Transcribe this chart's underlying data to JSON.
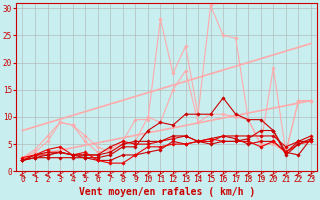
{
  "background_color": "#c8eef0",
  "grid_color": "#b0b0b0",
  "xlabel": "Vent moyen/en rafales ( km/h )",
  "xlabel_color": "#cc0000",
  "xlabel_fontsize": 7,
  "tick_color": "#cc0000",
  "tick_fontsize": 5.5,
  "xlim": [
    -0.5,
    23.5
  ],
  "ylim": [
    0,
    31
  ],
  "yticks": [
    0,
    5,
    10,
    15,
    20,
    25,
    30
  ],
  "xticks": [
    0,
    1,
    2,
    3,
    4,
    5,
    6,
    7,
    8,
    9,
    10,
    11,
    12,
    13,
    14,
    15,
    16,
    17,
    18,
    19,
    20,
    21,
    22,
    23
  ],
  "series": [
    {
      "x": [
        0,
        23
      ],
      "y": [
        7.5,
        23.5
      ],
      "color": "#ffaaaa",
      "lw": 1.2,
      "marker": null
    },
    {
      "x": [
        0,
        23
      ],
      "y": [
        2.5,
        13.0
      ],
      "color": "#ffaaaa",
      "lw": 1.2,
      "marker": null
    },
    {
      "x": [
        0,
        1,
        2,
        3,
        4,
        5,
        6,
        7,
        8,
        9,
        10,
        11,
        12,
        13,
        14,
        15,
        16,
        17,
        18,
        19,
        20,
        21,
        22,
        23
      ],
      "y": [
        2.5,
        3.5,
        5.5,
        9.0,
        8.5,
        5.5,
        3.5,
        4.0,
        5.5,
        9.5,
        9.5,
        28.0,
        18.0,
        23.0,
        10.5,
        30.5,
        25.0,
        24.5,
        9.5,
        5.0,
        5.0,
        3.5,
        13.0,
        13.0
      ],
      "color": "#ffaaaa",
      "lw": 0.8,
      "marker": "D",
      "markersize": 1.8
    },
    {
      "x": [
        0,
        1,
        2,
        3,
        4,
        5,
        6,
        7,
        8,
        9,
        10,
        11,
        12,
        13,
        14,
        15,
        16,
        17,
        18,
        19,
        20,
        21,
        22,
        23
      ],
      "y": [
        2.5,
        4.0,
        6.5,
        9.0,
        8.5,
        6.5,
        4.5,
        3.5,
        5.0,
        5.5,
        10.0,
        9.0,
        15.0,
        18.5,
        9.0,
        10.5,
        10.5,
        10.0,
        9.5,
        5.0,
        19.0,
        3.5,
        13.0,
        13.0
      ],
      "color": "#ffaaaa",
      "lw": 0.8,
      "marker": "D",
      "markersize": 1.8
    },
    {
      "x": [
        0,
        1,
        2,
        3,
        4,
        5,
        6,
        7,
        8,
        9,
        10,
        11,
        12,
        13,
        14,
        15,
        16,
        17,
        18,
        19,
        20,
        21,
        22,
        23
      ],
      "y": [
        2.0,
        2.5,
        2.5,
        2.5,
        2.5,
        2.5,
        2.5,
        3.0,
        4.5,
        4.5,
        7.5,
        9.0,
        8.5,
        10.5,
        10.5,
        10.5,
        13.5,
        10.5,
        9.5,
        9.5,
        7.5,
        3.5,
        3.0,
        6.0
      ],
      "color": "#cc0000",
      "lw": 0.8,
      "marker": "D",
      "markersize": 1.8
    },
    {
      "x": [
        0,
        1,
        2,
        3,
        4,
        5,
        6,
        7,
        8,
        9,
        10,
        11,
        12,
        13,
        14,
        15,
        16,
        17,
        18,
        19,
        20,
        21,
        22,
        23
      ],
      "y": [
        2.0,
        3.0,
        3.5,
        3.5,
        3.0,
        2.5,
        2.0,
        2.0,
        3.0,
        3.0,
        3.5,
        4.0,
        5.5,
        5.0,
        5.5,
        6.0,
        6.5,
        6.0,
        5.0,
        5.5,
        5.5,
        3.5,
        5.5,
        5.5
      ],
      "color": "#cc0000",
      "lw": 0.8,
      "marker": "D",
      "markersize": 1.8
    },
    {
      "x": [
        0,
        1,
        2,
        3,
        4,
        5,
        6,
        7,
        8,
        9,
        10,
        11,
        12,
        13,
        14,
        15,
        16,
        17,
        18,
        19,
        20,
        21,
        22,
        23
      ],
      "y": [
        2.0,
        3.0,
        3.0,
        3.5,
        3.0,
        3.0,
        3.0,
        4.5,
        5.5,
        5.0,
        5.0,
        5.5,
        6.0,
        6.5,
        5.5,
        5.5,
        6.5,
        6.5,
        6.5,
        6.5,
        6.5,
        4.5,
        5.5,
        6.5
      ],
      "color": "#dd0000",
      "lw": 0.8,
      "marker": "D",
      "markersize": 1.8
    },
    {
      "x": [
        0,
        1,
        2,
        3,
        4,
        5,
        6,
        7,
        8,
        9,
        10,
        11,
        12,
        13,
        14,
        15,
        16,
        17,
        18,
        19,
        20,
        21,
        22,
        23
      ],
      "y": [
        2.5,
        3.0,
        4.0,
        4.5,
        3.0,
        3.5,
        2.0,
        1.5,
        1.5,
        3.0,
        4.5,
        4.5,
        5.0,
        5.0,
        5.5,
        6.0,
        5.5,
        5.5,
        5.5,
        4.5,
        5.5,
        3.5,
        5.0,
        5.5
      ],
      "color": "#ee0000",
      "lw": 0.8,
      "marker": "D",
      "markersize": 1.8
    },
    {
      "x": [
        0,
        1,
        2,
        3,
        4,
        5,
        6,
        7,
        8,
        9,
        10,
        11,
        12,
        13,
        14,
        15,
        16,
        17,
        18,
        19,
        20,
        21,
        22,
        23
      ],
      "y": [
        2.0,
        2.5,
        3.0,
        3.5,
        3.0,
        3.0,
        3.0,
        3.5,
        5.0,
        5.5,
        5.5,
        5.5,
        6.5,
        6.5,
        5.5,
        5.0,
        5.5,
        5.5,
        6.0,
        7.5,
        7.5,
        3.0,
        5.0,
        6.0
      ],
      "color": "#cc0000",
      "lw": 0.8,
      "marker": "D",
      "markersize": 1.8
    }
  ],
  "spine_color": "#cc0000"
}
